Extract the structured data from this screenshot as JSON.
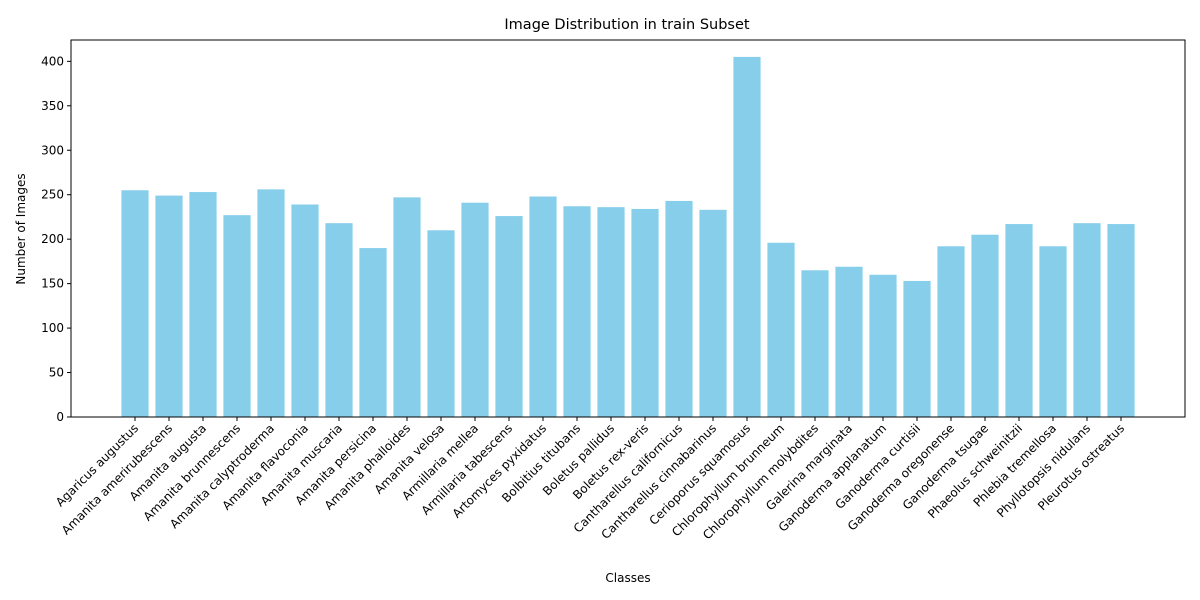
{
  "chart_data": {
    "type": "bar",
    "title": "Image Distribution in train Subset",
    "xlabel": "Classes",
    "ylabel": "Number of Images",
    "ylim": [
      0,
      424
    ],
    "yticks": [
      0,
      50,
      100,
      150,
      200,
      250,
      300,
      350,
      400
    ],
    "grid": false,
    "legend": "none",
    "bar_color": "#87ceeb",
    "categories": [
      "Agaricus augustus",
      "Amanita amerirubescens",
      "Amanita augusta",
      "Amanita brunnescens",
      "Amanita calyptroderma",
      "Amanita flavoconia",
      "Amanita muscaria",
      "Amanita persicina",
      "Amanita phalloides",
      "Amanita velosa",
      "Armillaria mellea",
      "Armillaria tabescens",
      "Artomyces pyxidatus",
      "Bolbitius titubans",
      "Boletus pallidus",
      "Boletus rex-veris",
      "Cantharellus californicus",
      "Cantharellus cinnabarinus",
      "Cerioporus squamosus",
      "Chlorophyllum brunneum",
      "Chlorophyllum molybdites",
      "Galerina marginata",
      "Ganoderma applanatum",
      "Ganoderma curtisii",
      "Ganoderma oregonense",
      "Ganoderma tsugae",
      "Phaeolus schweinitzii",
      "Phlebia tremellosa",
      "Phyllotopsis nidulans",
      "Pleurotus ostreatus"
    ],
    "values": [
      255,
      249,
      253,
      227,
      256,
      239,
      218,
      190,
      247,
      210,
      241,
      226,
      248,
      237,
      236,
      234,
      243,
      233,
      405,
      196,
      165,
      169,
      160,
      153,
      192,
      205,
      217,
      192,
      218,
      217
    ]
  }
}
